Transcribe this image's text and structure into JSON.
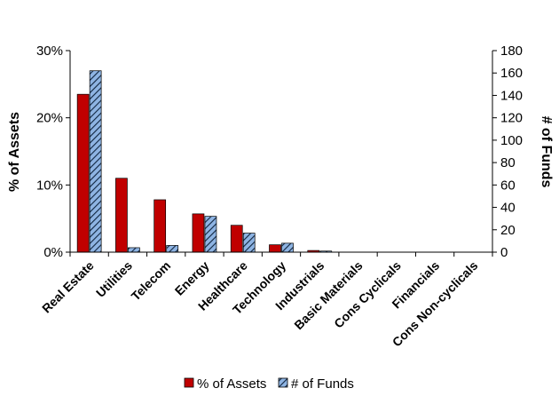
{
  "chart_data": {
    "type": "bar",
    "categories": [
      "Real Estate",
      "Utilities",
      "Telecom",
      "Energy",
      "Healthcare",
      "Technology",
      "Industrials",
      "Basic Materials",
      "Cons Cyclicals",
      "Financials",
      "Cons Non-cyclicals"
    ],
    "series": [
      {
        "name": "% of Assets",
        "axis": "left",
        "color": "#c00000",
        "pattern": "solid",
        "values": [
          23.5,
          11.0,
          7.8,
          5.7,
          4.0,
          1.1,
          0.25,
          0,
          0,
          0,
          0
        ]
      },
      {
        "name": "# of Funds",
        "axis": "right",
        "color": "#8eb4e3",
        "pattern": "hatched",
        "values": [
          162,
          4,
          6,
          32,
          17,
          8,
          1,
          0,
          0,
          0,
          0
        ]
      }
    ],
    "ylabel": "% of Assets",
    "y2label": "# of Funds",
    "ylim": [
      0,
      30
    ],
    "y2lim": [
      0,
      180
    ],
    "yticks": [
      "0%",
      "10%",
      "20%",
      "30%"
    ],
    "y2ticks": [
      "0",
      "20",
      "40",
      "60",
      "80",
      "100",
      "120",
      "140",
      "160",
      "180"
    ],
    "grid": false,
    "legend_position": "bottom"
  }
}
